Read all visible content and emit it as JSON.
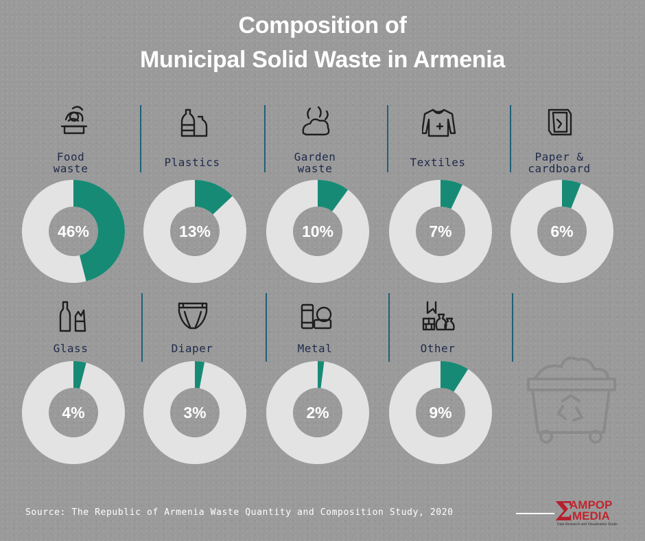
{
  "title": {
    "line1": "Composition of",
    "line2": "Municipal Solid Waste in Armenia"
  },
  "colors": {
    "accent": "#178a75",
    "ring": "#e3e3e3",
    "divider": "#1f5f78",
    "text": "#1f2a4a"
  },
  "chart_data": {
    "type": "pie",
    "style": "donut-grid",
    "categories": [
      "Food waste",
      "Plastics",
      "Garden waste",
      "Textiles",
      "Paper & cardboard",
      "Glass",
      "Diaper",
      "Metal",
      "Other"
    ],
    "values": [
      46,
      13,
      10,
      7,
      6,
      4,
      3,
      2,
      9
    ],
    "unit": "%"
  },
  "items": [
    {
      "label1": "Food",
      "label2": "waste",
      "pct": "46%",
      "icon": "food-waste-icon"
    },
    {
      "label1": "Plastics",
      "label2": "",
      "pct": "13%",
      "icon": "plastic-bottles-icon"
    },
    {
      "label1": "Garden",
      "label2": "waste",
      "pct": "10%",
      "icon": "garden-waste-icon"
    },
    {
      "label1": "Textiles",
      "label2": "",
      "pct": "7%",
      "icon": "sweater-icon"
    },
    {
      "label1": "Paper &",
      "label2": "cardboard",
      "pct": "6%",
      "icon": "paper-icon"
    },
    {
      "label1": "Glass",
      "label2": "",
      "pct": "4%",
      "icon": "glass-bottle-icon"
    },
    {
      "label1": "Diaper",
      "label2": "",
      "pct": "3%",
      "icon": "diaper-icon"
    },
    {
      "label1": "Metal",
      "label2": "",
      "pct": "2%",
      "icon": "metal-cans-icon"
    },
    {
      "label1": "Other",
      "label2": "",
      "pct": "9%",
      "icon": "rubble-bags-icon"
    }
  ],
  "source": "Source: The Republic of Armenia Waste Quantity and Composition Study, 2020",
  "logo": {
    "line1": "AMPOP",
    "line2": "MEDIA",
    "tagline": "Data Research and Visualization Studio"
  }
}
